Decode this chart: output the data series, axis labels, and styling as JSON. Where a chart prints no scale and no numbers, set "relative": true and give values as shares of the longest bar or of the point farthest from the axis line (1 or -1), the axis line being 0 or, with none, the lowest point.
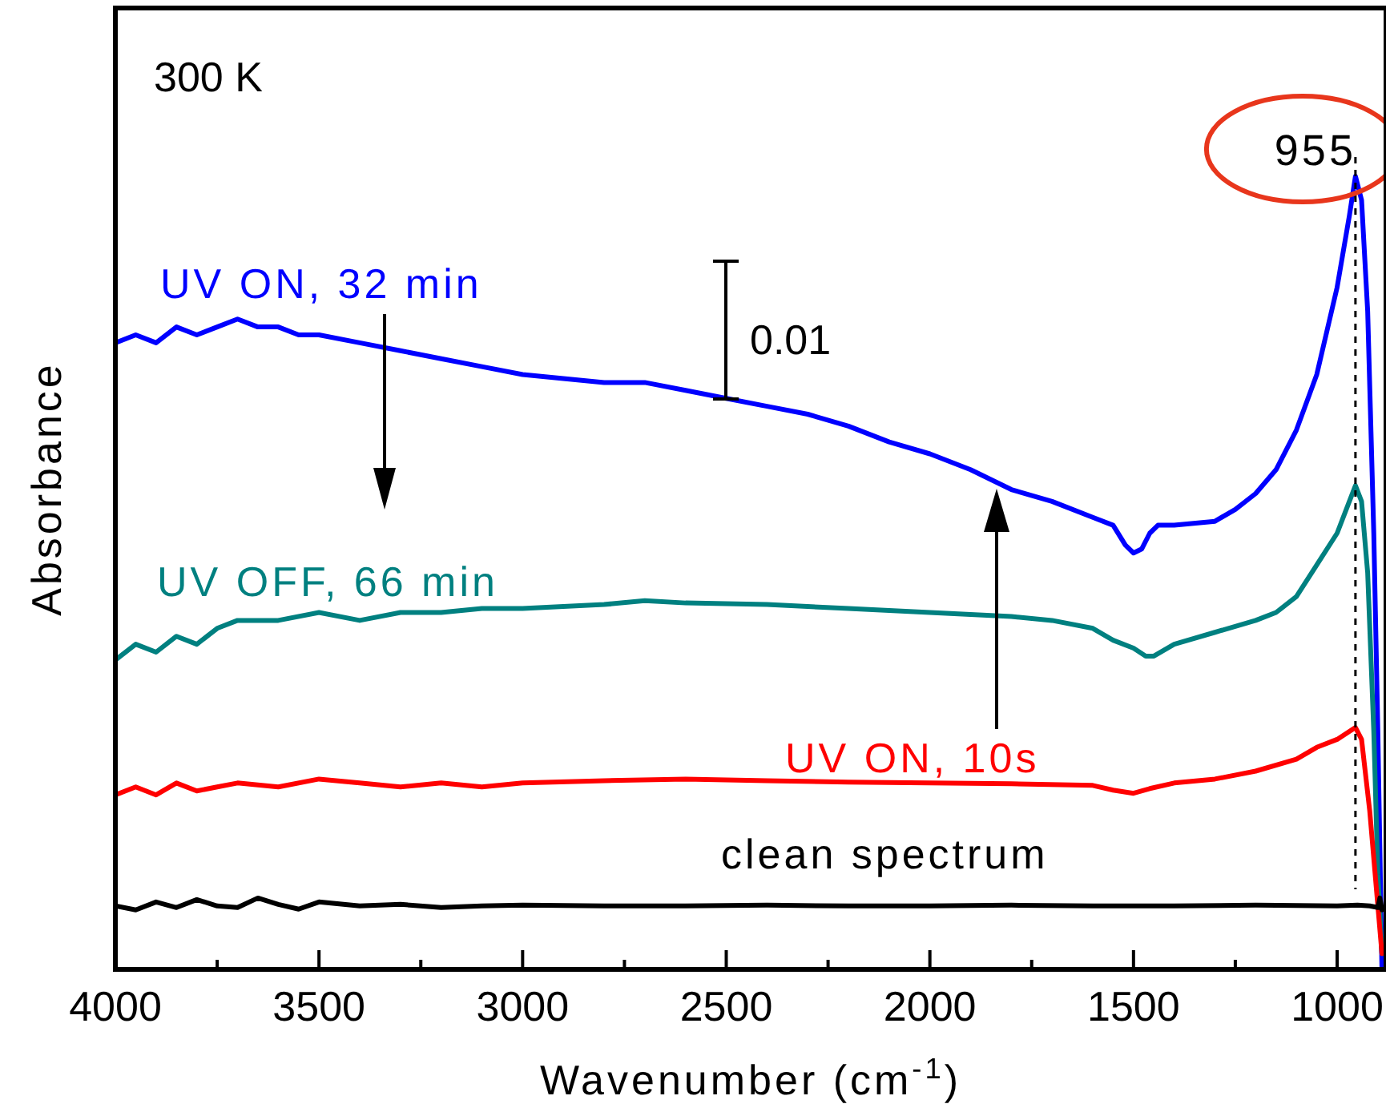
{
  "chart_data": {
    "type": "line",
    "relative": true,
    "xlabel": "Wavenumber (cm$^{-1}$)",
    "ylabel": "Absorbance",
    "xlim": [
      4000,
      880
    ],
    "xticks": [
      4000,
      {
        "value": 3750,
        "label": null
      },
      3500,
      {
        "value": 3250,
        "label": null
      },
      3000,
      {
        "value": 2750,
        "label": null
      },
      2500,
      {
        "value": 2250,
        "label": null
      },
      2000,
      {
        "value": 1750,
        "label": null
      },
      1500,
      {
        "value": 1250,
        "label": null
      },
      1000
    ],
    "tick_labels": "x",
    "grid": false,
    "line_style": "solid",
    "marker": "none",
    "annotations": [
      "300 K",
      "0.01"
    ],
    "ref_lines": [
      {
        "axis": "x",
        "value": 955,
        "label": "955",
        "line_style": "dashed",
        "color": "#000000"
      }
    ],
    "series": [
      {
        "name": "UV ON, 32 min",
        "color": "#0000ff",
        "x": [
          4000,
          3950,
          3900,
          3850,
          3800,
          3750,
          3700,
          3650,
          3600,
          3550,
          3500,
          3400,
          3300,
          3200,
          3100,
          3000,
          2900,
          2800,
          2700,
          2600,
          2500,
          2400,
          2300,
          2200,
          2100,
          2000,
          1900,
          1800,
          1700,
          1600,
          1550,
          1520,
          1500,
          1480,
          1460,
          1440,
          1400,
          1300,
          1250,
          1200,
          1150,
          1100,
          1050,
          1000,
          970,
          955,
          940,
          925,
          910,
          900,
          890
        ],
        "values": [
          0.79,
          0.8,
          0.79,
          0.81,
          0.8,
          0.81,
          0.82,
          0.81,
          0.81,
          0.8,
          0.8,
          0.79,
          0.78,
          0.77,
          0.76,
          0.75,
          0.745,
          0.74,
          0.74,
          0.73,
          0.72,
          0.71,
          0.7,
          0.685,
          0.665,
          0.65,
          0.63,
          0.605,
          0.59,
          0.57,
          0.56,
          0.535,
          0.525,
          0.53,
          0.55,
          0.56,
          0.56,
          0.565,
          0.58,
          0.6,
          0.63,
          0.68,
          0.75,
          0.86,
          0.95,
          1,
          0.97,
          0.83,
          0.55,
          0.3,
          0.0
        ]
      },
      {
        "name": "UV OFF, 66 min",
        "color": "#008080",
        "x": [
          4000,
          3950,
          3900,
          3850,
          3800,
          3750,
          3700,
          3600,
          3500,
          3400,
          3300,
          3200,
          3100,
          3000,
          2800,
          2700,
          2600,
          2400,
          2200,
          2000,
          1800,
          1700,
          1600,
          1550,
          1500,
          1470,
          1450,
          1400,
          1300,
          1200,
          1150,
          1100,
          1050,
          1000,
          970,
          955,
          940,
          925,
          910,
          900,
          890
        ],
        "values": [
          0.39,
          0.41,
          0.4,
          0.42,
          0.41,
          0.43,
          0.44,
          0.44,
          0.45,
          0.44,
          0.45,
          0.45,
          0.455,
          0.455,
          0.46,
          0.465,
          0.462,
          0.46,
          0.455,
          0.45,
          0.445,
          0.44,
          0.43,
          0.415,
          0.405,
          0.395,
          0.395,
          0.41,
          0.425,
          0.44,
          0.45,
          0.47,
          0.51,
          0.55,
          0.59,
          0.61,
          0.59,
          0.5,
          0.3,
          0.12,
          0.02
        ]
      },
      {
        "name": "UV ON, 10s",
        "color": "#ff0000",
        "x": [
          4000,
          3950,
          3900,
          3850,
          3800,
          3750,
          3700,
          3600,
          3500,
          3400,
          3300,
          3200,
          3100,
          3000,
          2800,
          2600,
          2400,
          2200,
          2000,
          1800,
          1600,
          1550,
          1500,
          1460,
          1400,
          1300,
          1200,
          1100,
          1050,
          1000,
          970,
          955,
          940,
          920,
          900,
          890
        ],
        "values": [
          0.22,
          0.23,
          0.22,
          0.235,
          0.225,
          0.23,
          0.235,
          0.23,
          0.24,
          0.235,
          0.23,
          0.235,
          0.23,
          0.235,
          0.238,
          0.24,
          0.238,
          0.236,
          0.235,
          0.234,
          0.232,
          0.226,
          0.222,
          0.228,
          0.235,
          0.24,
          0.25,
          0.265,
          0.28,
          0.29,
          0.3,
          0.305,
          0.29,
          0.2,
          0.08,
          0.02
        ]
      },
      {
        "name": "clean spectrum",
        "color": "#000000",
        "x": [
          4000,
          3950,
          3900,
          3850,
          3800,
          3750,
          3700,
          3650,
          3600,
          3550,
          3500,
          3400,
          3300,
          3200,
          3100,
          3000,
          2800,
          2600,
          2400,
          2200,
          2000,
          1800,
          1600,
          1400,
          1200,
          1000,
          950,
          920,
          900,
          895,
          890
        ],
        "values": [
          0.08,
          0.075,
          0.085,
          0.078,
          0.088,
          0.08,
          0.078,
          0.09,
          0.082,
          0.076,
          0.085,
          0.08,
          0.082,
          0.078,
          0.08,
          0.081,
          0.08,
          0.08,
          0.081,
          0.08,
          0.08,
          0.081,
          0.08,
          0.08,
          0.081,
          0.08,
          0.081,
          0.08,
          0.078,
          0.09,
          0.075
        ]
      }
    ]
  }
}
